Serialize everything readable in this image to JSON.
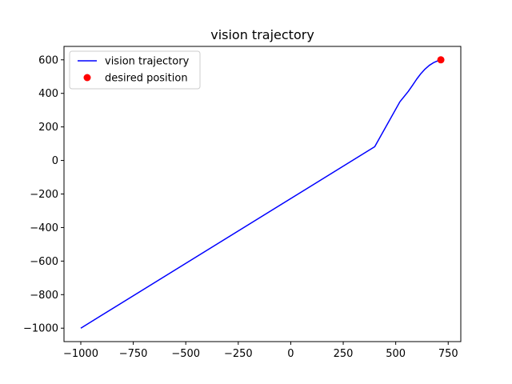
{
  "chart_data": {
    "type": "line",
    "title": "vision trajectory",
    "xlabel": "",
    "ylabel": "",
    "xlim": [
      -1080,
      810
    ],
    "ylim": [
      -1080,
      680
    ],
    "xticks": [
      -1000,
      -750,
      -500,
      -250,
      0,
      250,
      500,
      750
    ],
    "yticks": [
      -1000,
      -800,
      -600,
      -400,
      -200,
      0,
      200,
      400,
      600
    ],
    "xtick_labels": [
      "−1000",
      "−750",
      "−500",
      "−250",
      "0",
      "250",
      "500",
      "750"
    ],
    "ytick_labels": [
      "−1000",
      "−800",
      "−600",
      "−400",
      "−200",
      "0",
      "200",
      "400",
      "600"
    ],
    "grid": false,
    "legend_position": "upper-left",
    "series": [
      {
        "name": "vision trajectory",
        "kind": "line",
        "color": "#0000ff",
        "x": [
          -1000,
          400,
          520,
          560,
          580,
          600,
          620,
          640,
          660,
          680,
          700,
          715
        ],
        "y": [
          -1000,
          82,
          350,
          412,
          448,
          485,
          518,
          545,
          567,
          583,
          594,
          600
        ]
      },
      {
        "name": "desired position",
        "kind": "scatter",
        "color": "#ff0000",
        "x": [
          715
        ],
        "y": [
          600
        ]
      }
    ]
  }
}
